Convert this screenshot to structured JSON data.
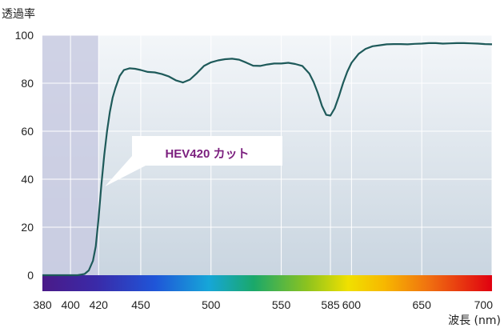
{
  "chart_data": {
    "type": "line",
    "ylabel": "透過率",
    "xlabel": "波長 (nm)",
    "xlim": [
      380,
      700
    ],
    "ylim": [
      0,
      100
    ],
    "x_ticks": [
      380,
      400,
      420,
      450,
      500,
      550,
      585,
      600,
      650,
      700
    ],
    "y_ticks": [
      0,
      20,
      40,
      60,
      80,
      100
    ],
    "highlight_tick_colors": {
      "420": "#7b1f7e",
      "585": "#d2691e"
    },
    "shaded_band": {
      "from": 380,
      "to": 420,
      "color": "#c9cbe2"
    },
    "annotation": {
      "text": "HEV420 カット",
      "color": "#7b1f7e",
      "points_to": [
        420,
        37
      ]
    },
    "grid": true,
    "spectrum_bar": true,
    "line_color": "#1e5a5a",
    "series": [
      {
        "x": [
          380,
          395,
          405,
          410,
          413,
          416,
          418,
          420,
          422,
          424,
          426,
          428,
          430,
          432,
          435,
          438,
          442,
          446,
          450,
          455,
          460,
          465,
          470,
          475,
          480,
          485,
          490,
          495,
          500,
          505,
          510,
          515,
          520,
          525,
          530,
          535,
          540,
          545,
          550,
          555,
          560,
          565,
          570,
          573,
          576,
          579,
          582,
          585,
          588,
          591,
          594,
          597,
          600,
          605,
          610,
          615,
          620,
          625,
          630,
          635,
          640,
          645,
          650,
          655,
          660,
          665,
          670,
          675,
          680,
          685,
          690,
          695,
          700
        ],
        "y": [
          0,
          0,
          0,
          0.5,
          2,
          6,
          12,
          24,
          38,
          50,
          60,
          68,
          74,
          78,
          83,
          85.5,
          86.2,
          86,
          85.5,
          84.7,
          84.5,
          83.8,
          82.8,
          81.2,
          80.3,
          81.5,
          84.2,
          87.2,
          88.7,
          89.5,
          90,
          90.2,
          89.8,
          88.6,
          87.3,
          87.2,
          87.8,
          88.2,
          88.2,
          88.5,
          88,
          87.2,
          84,
          80.5,
          76,
          70.5,
          66.8,
          66.5,
          69.5,
          74.5,
          80,
          84.8,
          88.5,
          92.2,
          94.3,
          95.4,
          95.8,
          96.2,
          96.3,
          96.3,
          96.2,
          96.4,
          96.5,
          96.7,
          96.7,
          96.5,
          96.6,
          96.7,
          96.7,
          96.6,
          96.5,
          96.3,
          96.2
        ]
      }
    ]
  }
}
